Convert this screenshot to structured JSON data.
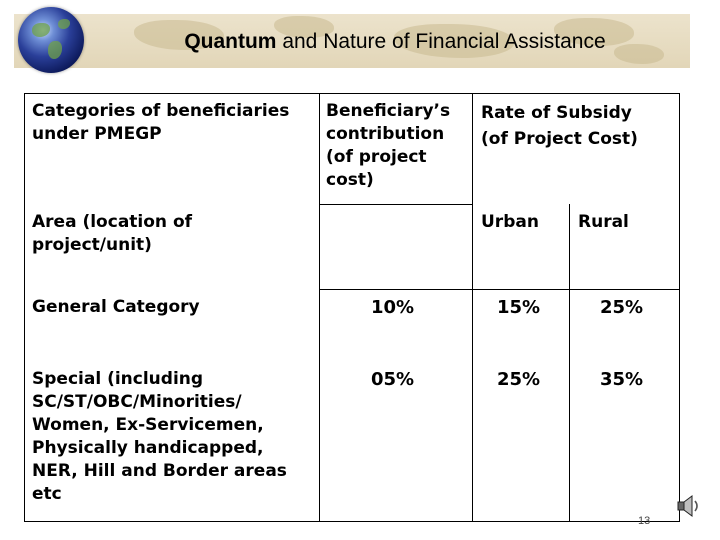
{
  "title": {
    "bold": "Quantum",
    "rest": " and Nature of Financial Assistance"
  },
  "table": {
    "header": {
      "col1": "Categories of beneficiaries\nunder PMEGP",
      "col2": "Beneficiary’s\ncontribution\n(of project\ncost)",
      "col3": "Rate of Subsidy\n(of Project Cost)"
    },
    "area_row": {
      "label": "Area (location of\nproject/unit)",
      "urban": "Urban",
      "rural": "Rural"
    },
    "rows": [
      {
        "category": "General Category",
        "contribution": "10%",
        "urban": "15%",
        "rural": "25%"
      },
      {
        "category": "Special (including\nSC/ST/OBC/Minorities/\nWomen, Ex-Servicemen,\nPhysically handicapped,\nNER, Hill and Border areas\netc",
        "contribution": "05%",
        "urban": "25%",
        "rural": "35%"
      }
    ]
  },
  "page_number": "13",
  "icons": {
    "logo": "globe-icon",
    "audio": "speaker-icon"
  }
}
